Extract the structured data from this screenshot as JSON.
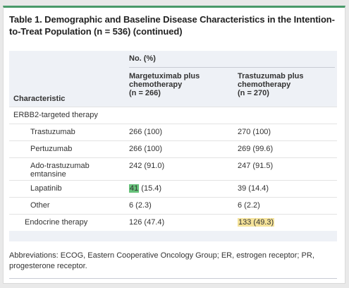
{
  "table": {
    "title_number": "Table 1.",
    "title_text": " Demographic and Baseline Disease Characteristics in the Intention-to-Treat Population (n = 536) (continued)",
    "header_group": "No. (%)",
    "columns": [
      "Margetuximab plus\nchemotherapy\n(n = 266)",
      "Trastuzumab plus\nchemotherapy\n(n = 270)"
    ],
    "characteristic_label": "Characteristic",
    "rows": [
      {
        "label": "ERBB2-targeted therapy",
        "v1": "",
        "v2": ""
      },
      {
        "label": "Trastuzumab",
        "v1": "266 (100)",
        "v2": "270 (100)"
      },
      {
        "label": "Pertuzumab",
        "v1": "266 (100)",
        "v2": "269 (99.6)"
      },
      {
        "label": "Ado-trastuzumab\nemtansine",
        "v1": "242 (91.0)",
        "v2": "247 (91.5)"
      },
      {
        "label": "Lapatinib",
        "v1_highlight": "41",
        "v1_rest": " (15.4)",
        "v2": "39 (14.4)"
      },
      {
        "label": "Other",
        "v1": "6 (2.3)",
        "v2": "6 (2.2)"
      },
      {
        "label": "Endocrine therapy",
        "v1": "126 (47.4)",
        "v2_highlight": "133 (49.3)"
      }
    ],
    "abbreviations": "Abbreviations: ECOG, Eastern Cooperative Oncology Group; ER, estrogen receptor; PR, progesterone receptor.",
    "highlight_colors": {
      "green": "#67c27a",
      "yellow": "#f5e39a"
    }
  }
}
